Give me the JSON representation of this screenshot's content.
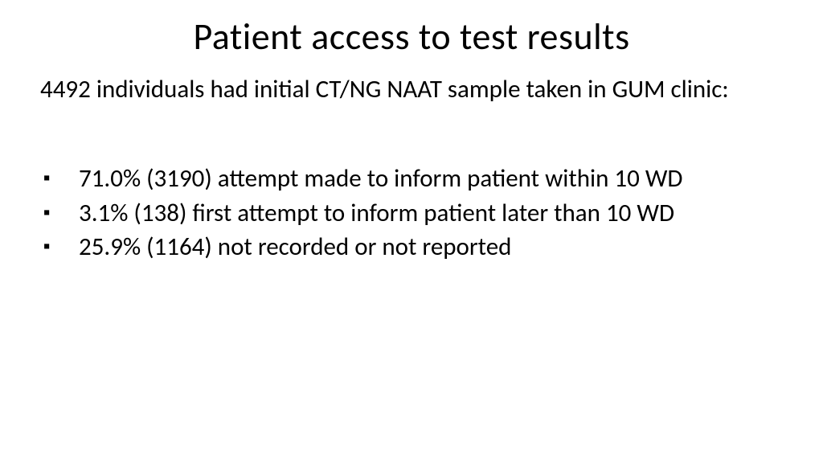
{
  "slide": {
    "title": "Patient access to test results",
    "intro": "4492 individuals had initial CT/NG NAAT sample taken in GUM clinic:",
    "bullets": [
      "71.0% (3190) attempt made to inform patient within 10 WD",
      "3.1% (138) first attempt to inform patient later than 10 WD",
      "25.9% (1164) not recorded or not reported"
    ],
    "styling": {
      "background_color": "#ffffff",
      "text_color": "#000000",
      "title_fontsize": 46,
      "body_fontsize": 31,
      "font_family": "Calibri",
      "bullet_marker": "▪"
    }
  }
}
